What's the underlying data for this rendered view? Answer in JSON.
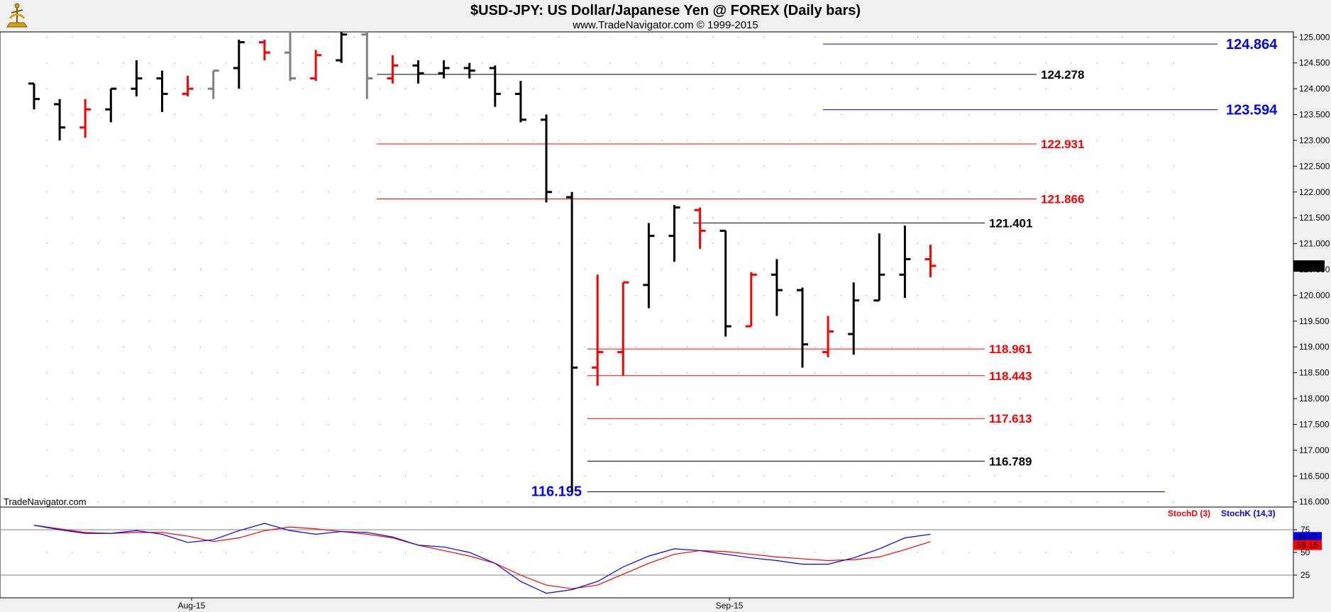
{
  "header": {
    "title": "$USD-JPY:  US Dollar/Japanese Yen @ FOREX  (Daily bars)",
    "subtitle": "www.TradeNavigator.com © 1999-2015",
    "logo_icon": "sextant-logo-icon"
  },
  "watermark": "TradeNavigator.com",
  "colors": {
    "up_bar": "#000000",
    "down_bar": "#ff0000",
    "neutral_bar": "#808080",
    "blue_level": "#0000ff",
    "red_level": "#ff0000",
    "black_level": "#000000",
    "stochD": "#ff0000",
    "stochK": "#0000ff"
  },
  "chart_data": [
    {
      "type": "ohlc",
      "series_name": "$USD-JPY",
      "y_axis": {
        "range": [
          115.9,
          125.1
        ],
        "ticks": [
          "125.000",
          "124.500",
          "124.000",
          "123.500",
          "123.000",
          "122.500",
          "122.000",
          "121.500",
          "121.000",
          "120.500",
          "120.000",
          "119.500",
          "119.000",
          "118.500",
          "118.000",
          "117.500",
          "117.000",
          "116.500",
          "116.000"
        ]
      },
      "x_axis": {
        "ticks": [
          {
            "label": "Aug-15",
            "index": 6
          },
          {
            "label": "Sep-15",
            "index": 27
          }
        ]
      },
      "last_price": "120.567",
      "bars": [
        {
          "o": 124.1,
          "h": 124.1,
          "l": 123.6,
          "c": 123.8,
          "color": "black"
        },
        {
          "o": 123.7,
          "h": 123.8,
          "l": 123.0,
          "c": 123.25,
          "color": "black"
        },
        {
          "o": 123.25,
          "h": 123.8,
          "l": 123.05,
          "c": 123.6,
          "color": "red"
        },
        {
          "o": 123.6,
          "h": 124.0,
          "l": 123.35,
          "c": 124.0,
          "color": "black"
        },
        {
          "o": 124.0,
          "h": 124.55,
          "l": 123.85,
          "c": 124.2,
          "color": "black"
        },
        {
          "o": 124.2,
          "h": 124.35,
          "l": 123.55,
          "c": 123.9,
          "color": "black"
        },
        {
          "o": 123.9,
          "h": 124.25,
          "l": 123.85,
          "c": 124.0,
          "color": "red"
        },
        {
          "o": 124.0,
          "h": 124.35,
          "l": 123.8,
          "c": 124.35,
          "color": "gray"
        },
        {
          "o": 124.4,
          "h": 124.95,
          "l": 124.0,
          "c": 124.9,
          "color": "black"
        },
        {
          "o": 124.9,
          "h": 124.95,
          "l": 124.55,
          "c": 124.7,
          "color": "red"
        },
        {
          "o": 124.7,
          "h": 125.1,
          "l": 124.15,
          "c": 124.2,
          "color": "gray"
        },
        {
          "o": 124.2,
          "h": 124.75,
          "l": 124.15,
          "c": 124.65,
          "color": "red"
        },
        {
          "o": 124.55,
          "h": 125.1,
          "l": 124.5,
          "c": 125.05,
          "color": "black"
        },
        {
          "o": 125.05,
          "h": 125.1,
          "l": 123.8,
          "c": 124.2,
          "color": "gray"
        },
        {
          "o": 124.2,
          "h": 124.65,
          "l": 124.1,
          "c": 124.45,
          "color": "red"
        },
        {
          "o": 124.45,
          "h": 124.55,
          "l": 124.1,
          "c": 124.3,
          "color": "black"
        },
        {
          "o": 124.3,
          "h": 124.55,
          "l": 124.2,
          "c": 124.4,
          "color": "black"
        },
        {
          "o": 124.4,
          "h": 124.5,
          "l": 124.2,
          "c": 124.35,
          "color": "black"
        },
        {
          "o": 124.4,
          "h": 124.45,
          "l": 123.65,
          "c": 123.9,
          "color": "black"
        },
        {
          "o": 123.9,
          "h": 124.15,
          "l": 123.35,
          "c": 123.4,
          "color": "black"
        },
        {
          "o": 123.4,
          "h": 123.5,
          "l": 121.8,
          "c": 122.0,
          "color": "black"
        },
        {
          "o": 121.9,
          "h": 122.0,
          "l": 116.2,
          "c": 118.6,
          "color": "black"
        },
        {
          "o": 118.6,
          "h": 120.4,
          "l": 118.25,
          "c": 118.9,
          "color": "red"
        },
        {
          "o": 118.9,
          "h": 120.25,
          "l": 118.45,
          "c": 120.25,
          "color": "red"
        },
        {
          "o": 120.2,
          "h": 121.4,
          "l": 119.75,
          "c": 121.15,
          "color": "black"
        },
        {
          "o": 121.15,
          "h": 121.75,
          "l": 120.65,
          "c": 121.7,
          "color": "black"
        },
        {
          "o": 121.65,
          "h": 121.7,
          "l": 120.9,
          "c": 121.25,
          "color": "red"
        },
        {
          "o": 121.25,
          "h": 121.25,
          "l": 119.2,
          "c": 119.4,
          "color": "black"
        },
        {
          "o": 119.4,
          "h": 120.45,
          "l": 119.4,
          "c": 120.4,
          "color": "red"
        },
        {
          "o": 120.4,
          "h": 120.7,
          "l": 119.6,
          "c": 120.1,
          "color": "black"
        },
        {
          "o": 120.1,
          "h": 120.15,
          "l": 118.6,
          "c": 119.05,
          "color": "black"
        },
        {
          "o": 118.9,
          "h": 119.6,
          "l": 118.8,
          "c": 119.3,
          "color": "red"
        },
        {
          "o": 119.25,
          "h": 120.25,
          "l": 118.85,
          "c": 119.9,
          "color": "black"
        },
        {
          "o": 119.9,
          "h": 121.2,
          "l": 119.9,
          "c": 120.4,
          "color": "black"
        },
        {
          "o": 120.4,
          "h": 121.35,
          "l": 119.95,
          "c": 120.7,
          "color": "black"
        },
        {
          "o": 120.7,
          "h": 120.98,
          "l": 120.35,
          "c": 120.57,
          "color": "red"
        }
      ],
      "levels": [
        {
          "value": "124.864",
          "color": "blue",
          "style": "big",
          "start": "Sep-03",
          "end": "Sep-16"
        },
        {
          "value": "124.278",
          "color": "black",
          "style": "normal",
          "start": "Aug-24",
          "end": "Sep-16"
        },
        {
          "value": "123.594",
          "color": "blue",
          "style": "big",
          "start": "Sep-03",
          "end": "Sep-16"
        },
        {
          "value": "122.931",
          "color": "red",
          "style": "normal",
          "start": "Aug-24",
          "end": "Sep-16"
        },
        {
          "value": "121.866",
          "color": "red",
          "style": "normal",
          "start": "Aug-24",
          "end": "Sep-16"
        },
        {
          "value": "121.401",
          "color": "black",
          "style": "normal",
          "start": "Sep-04",
          "end": "Sep-16"
        },
        {
          "value": "118.961",
          "color": "red",
          "style": "normal",
          "start": "Aug-31",
          "end": "Sep-16"
        },
        {
          "value": "118.443",
          "color": "red",
          "style": "normal",
          "start": "Aug-31",
          "end": "Sep-16"
        },
        {
          "value": "117.613",
          "color": "red",
          "style": "normal",
          "start": "Aug-31",
          "end": "Sep-16"
        },
        {
          "value": "116.789",
          "color": "black",
          "style": "normal",
          "start": "Aug-31",
          "end": "Sep-16"
        },
        {
          "value": "116.195",
          "color": "blue",
          "style": "big-left",
          "start": "Aug-31",
          "end": "Sep-16"
        }
      ]
    },
    {
      "type": "line",
      "y_axis": {
        "range": [
          0,
          100
        ],
        "ticks": [
          "75",
          "50",
          "25"
        ]
      },
      "legend": [
        "StochD (3)",
        "StochK (14,3)"
      ],
      "series": [
        {
          "name": "StochD (3)",
          "color": "red",
          "values": [
            80,
            76,
            72,
            71,
            72,
            72,
            68,
            62,
            66,
            74,
            78,
            76,
            73,
            70,
            66,
            58,
            52,
            46,
            38,
            25,
            14,
            10,
            14,
            26,
            38,
            48,
            52,
            51,
            48,
            45,
            43,
            41,
            42,
            45,
            53,
            62
          ],
          "readout": "58.15"
        },
        {
          "name": "StochK (14,3)",
          "color": "blue",
          "values": [
            80,
            75,
            71,
            71,
            74,
            70,
            61,
            64,
            74,
            82,
            74,
            70,
            73,
            72,
            67,
            58,
            56,
            50,
            38,
            18,
            5,
            9,
            18,
            34,
            46,
            54,
            52,
            48,
            44,
            41,
            37,
            37,
            44,
            54,
            66,
            70
          ],
          "readout": "66.97"
        }
      ]
    }
  ]
}
